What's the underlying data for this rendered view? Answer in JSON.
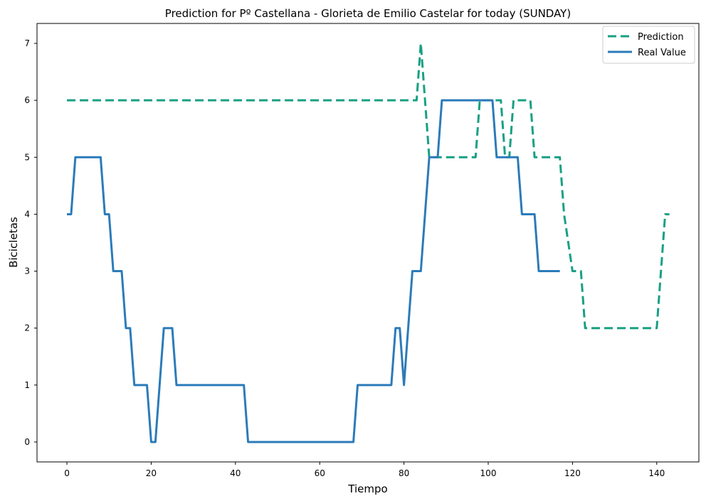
{
  "chart_data": {
    "type": "line",
    "title": "Prediction for Pº Castellana - Glorieta de Emilio Castelar for today (SUNDAY)",
    "xlabel": "Tiempo",
    "ylabel": "Bicicletas",
    "xlim": [
      -7.1,
      150
    ],
    "ylim": [
      -0.35,
      7.35
    ],
    "x_ticks": [
      0,
      20,
      40,
      60,
      80,
      100,
      120,
      140
    ],
    "x_tick_labels": [
      "0",
      "20",
      "40",
      "60",
      "80",
      "100",
      "120",
      "140"
    ],
    "y_ticks": [
      0,
      1,
      2,
      3,
      4,
      5,
      6,
      7
    ],
    "y_tick_labels": [
      "0",
      "1",
      "2",
      "3",
      "4",
      "5",
      "6",
      "7"
    ],
    "grid": false,
    "legend_position": "top-right",
    "series": [
      {
        "name": "Prediction",
        "color": "#17a083",
        "style": "dashed",
        "points": [
          [
            0,
            6
          ],
          [
            83,
            6
          ],
          [
            84,
            7
          ],
          [
            85,
            6
          ],
          [
            86,
            5
          ],
          [
            97,
            5
          ],
          [
            98,
            6
          ],
          [
            103,
            6
          ],
          [
            104,
            5
          ],
          [
            105,
            5
          ],
          [
            106,
            6
          ],
          [
            110,
            6
          ],
          [
            111,
            5
          ],
          [
            117,
            5
          ],
          [
            118,
            4
          ],
          [
            120,
            3
          ],
          [
            122,
            3
          ],
          [
            123,
            2
          ],
          [
            140,
            2
          ],
          [
            142,
            4
          ],
          [
            143,
            4
          ]
        ]
      },
      {
        "name": "Real Value",
        "color": "#2b7bba",
        "style": "solid",
        "points": [
          [
            0,
            4
          ],
          [
            1,
            4
          ],
          [
            2,
            5
          ],
          [
            8,
            5
          ],
          [
            9,
            4
          ],
          [
            10,
            4
          ],
          [
            11,
            3
          ],
          [
            13,
            3
          ],
          [
            14,
            2
          ],
          [
            15,
            2
          ],
          [
            16,
            1
          ],
          [
            19,
            1
          ],
          [
            20,
            0
          ],
          [
            21,
            0
          ],
          [
            23,
            2
          ],
          [
            25,
            2
          ],
          [
            26,
            1
          ],
          [
            42,
            1
          ],
          [
            43,
            0
          ],
          [
            68,
            0
          ],
          [
            69,
            1
          ],
          [
            77,
            1
          ],
          [
            78,
            2
          ],
          [
            79,
            2
          ],
          [
            80,
            1
          ],
          [
            82,
            3
          ],
          [
            84,
            3
          ],
          [
            86,
            5
          ],
          [
            88,
            5
          ],
          [
            89,
            6
          ],
          [
            101,
            6
          ],
          [
            102,
            5
          ],
          [
            107,
            5
          ],
          [
            108,
            4
          ],
          [
            111,
            4
          ],
          [
            112,
            3
          ],
          [
            117,
            3
          ]
        ]
      }
    ]
  }
}
